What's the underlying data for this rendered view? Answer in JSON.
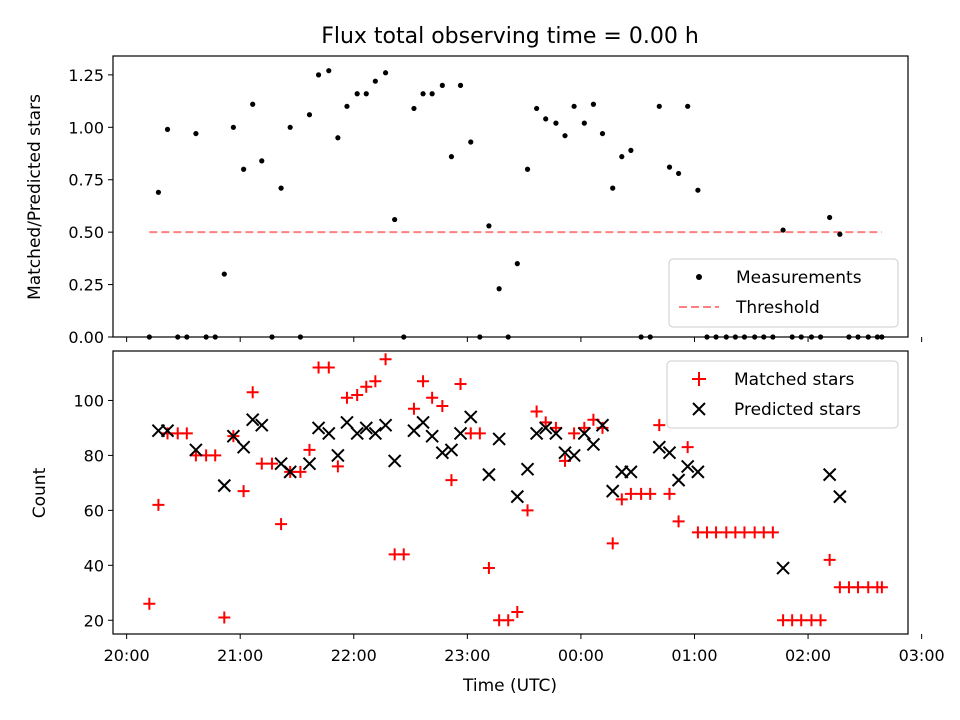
{
  "chart_data": {
    "type": "scatter",
    "title": "Flux total observing time = 0.00 h",
    "xlabel": "Time (UTC)",
    "xlim": [
      -0.12,
      6.88
    ],
    "xticks": [
      0,
      1,
      2,
      3,
      4,
      5,
      6,
      7
    ],
    "xtick_labels": [
      "20:00",
      "21:00",
      "22:00",
      "23:00",
      "00:00",
      "01:00",
      "02:00",
      "03:00"
    ],
    "top": {
      "ylabel": "Matched/Predicted stars",
      "ylim": [
        0,
        1.34
      ],
      "yticks": [
        0,
        0.25,
        0.5,
        0.75,
        1.0,
        1.25
      ],
      "ytick_labels": [
        "0.00",
        "0.25",
        "0.50",
        "0.75",
        "1.00",
        "1.25"
      ],
      "threshold": {
        "value": 0.5,
        "x_range": [
          0.2,
          6.65
        ],
        "color": "#ff8080"
      },
      "measurements": {
        "color": "#000000",
        "x": [
          0.2,
          0.28,
          0.36,
          0.45,
          0.53,
          0.61,
          0.7,
          0.78,
          0.86,
          0.94,
          1.03,
          1.11,
          1.19,
          1.28,
          1.36,
          1.44,
          1.53,
          1.61,
          1.69,
          1.78,
          1.86,
          1.94,
          2.03,
          2.11,
          2.19,
          2.28,
          2.36,
          2.44,
          2.53,
          2.61,
          2.69,
          2.78,
          2.86,
          2.94,
          3.03,
          3.11,
          3.19,
          3.28,
          3.36,
          3.44,
          3.53,
          3.61,
          3.69,
          3.78,
          3.86,
          3.94,
          4.03,
          4.11,
          4.19,
          4.28,
          4.36,
          4.44,
          4.53,
          4.61,
          4.69,
          4.78,
          4.86,
          4.94,
          5.03,
          5.11,
          5.19,
          5.28,
          5.36,
          5.44,
          5.53,
          5.61,
          5.69,
          5.78,
          5.86,
          5.94,
          6.03,
          6.11,
          6.19,
          6.28,
          6.36,
          6.44,
          6.53,
          6.61,
          6.65
        ],
        "y": [
          0.0,
          0.69,
          0.99,
          0.0,
          0.0,
          0.97,
          0.0,
          0.0,
          0.3,
          1.0,
          0.8,
          1.11,
          0.84,
          0.0,
          0.71,
          1.0,
          0.0,
          1.06,
          1.25,
          1.27,
          0.95,
          1.1,
          1.16,
          1.16,
          1.22,
          1.26,
          0.56,
          0.0,
          1.09,
          1.16,
          1.16,
          1.2,
          0.86,
          1.2,
          0.93,
          0.0,
          0.53,
          0.23,
          0.0,
          0.35,
          0.8,
          1.09,
          1.04,
          1.02,
          0.96,
          1.1,
          1.02,
          1.11,
          0.97,
          0.71,
          0.86,
          0.89,
          0.0,
          0.0,
          1.1,
          0.81,
          0.78,
          1.1,
          0.7,
          0.0,
          0.0,
          0.0,
          0.0,
          0.0,
          0.0,
          0.0,
          0.0,
          0.51,
          0.0,
          0.0,
          0.0,
          0.0,
          0.57,
          0.49,
          0.0,
          0.0,
          0.0,
          0.0,
          0.0
        ]
      },
      "legend": {
        "position": "lower-right",
        "entries": [
          "Measurements",
          "Threshold"
        ]
      }
    },
    "bottom": {
      "ylabel": "Count",
      "ylim": [
        15,
        118
      ],
      "yticks": [
        20,
        40,
        60,
        80,
        100
      ],
      "ytick_labels": [
        "20",
        "40",
        "60",
        "80",
        "100"
      ],
      "matched": {
        "name": "Matched stars",
        "color": "#ff0000",
        "x": [
          0.2,
          0.28,
          0.36,
          0.45,
          0.53,
          0.61,
          0.7,
          0.78,
          0.86,
          0.94,
          1.03,
          1.11,
          1.19,
          1.28,
          1.36,
          1.44,
          1.53,
          1.61,
          1.69,
          1.78,
          1.86,
          1.94,
          2.03,
          2.11,
          2.19,
          2.28,
          2.36,
          2.44,
          2.53,
          2.61,
          2.69,
          2.78,
          2.86,
          2.94,
          3.03,
          3.11,
          3.19,
          3.28,
          3.36,
          3.44,
          3.53,
          3.61,
          3.69,
          3.78,
          3.86,
          3.94,
          4.03,
          4.11,
          4.19,
          4.28,
          4.36,
          4.44,
          4.53,
          4.61,
          4.69,
          4.78,
          4.86,
          4.94,
          5.03,
          5.11,
          5.19,
          5.28,
          5.36,
          5.44,
          5.53,
          5.61,
          5.69,
          5.78,
          5.86,
          5.94,
          6.03,
          6.11,
          6.19,
          6.28,
          6.36,
          6.44,
          6.53,
          6.61,
          6.65
        ],
        "y": [
          26,
          62,
          88,
          88,
          88,
          80,
          80,
          80,
          21,
          87,
          67,
          103,
          77,
          77,
          55,
          74,
          74,
          82,
          112,
          112,
          76,
          101,
          102,
          105,
          107,
          115,
          44,
          44,
          97,
          107,
          101,
          98,
          71,
          106,
          88,
          88,
          39,
          20,
          20,
          23,
          60,
          96,
          92,
          90,
          78,
          88,
          90,
          93,
          90,
          48,
          64,
          66,
          66,
          66,
          91,
          66,
          56,
          83,
          52,
          52,
          52,
          52,
          52,
          52,
          52,
          52,
          52,
          20,
          20,
          20,
          20,
          20,
          42,
          32,
          32,
          32,
          32,
          32,
          32
        ]
      },
      "predicted": {
        "name": "Predicted stars",
        "color": "#000000",
        "x": [
          0.28,
          0.36,
          0.61,
          0.86,
          0.94,
          1.03,
          1.11,
          1.19,
          1.36,
          1.44,
          1.61,
          1.69,
          1.78,
          1.86,
          1.94,
          2.03,
          2.11,
          2.19,
          2.28,
          2.36,
          2.53,
          2.61,
          2.69,
          2.78,
          2.86,
          2.94,
          3.03,
          3.19,
          3.28,
          3.44,
          3.53,
          3.61,
          3.69,
          3.78,
          3.86,
          3.94,
          4.03,
          4.11,
          4.19,
          4.28,
          4.36,
          4.44,
          4.69,
          4.78,
          4.86,
          4.94,
          5.03,
          5.78,
          6.19,
          6.28
        ],
        "y": [
          89,
          89,
          82,
          69,
          87,
          83,
          93,
          91,
          77,
          74,
          77,
          90,
          88,
          80,
          92,
          88,
          90,
          88,
          91,
          78,
          89,
          92,
          87,
          81,
          82,
          88,
          94,
          73,
          86,
          65,
          75,
          88,
          90,
          88,
          81,
          80,
          88,
          84,
          91,
          67,
          74,
          74,
          83,
          81,
          71,
          76,
          74,
          39,
          73,
          65
        ]
      },
      "legend": {
        "position": "upper-right",
        "entries": [
          "Matched stars",
          "Predicted stars"
        ]
      }
    }
  }
}
